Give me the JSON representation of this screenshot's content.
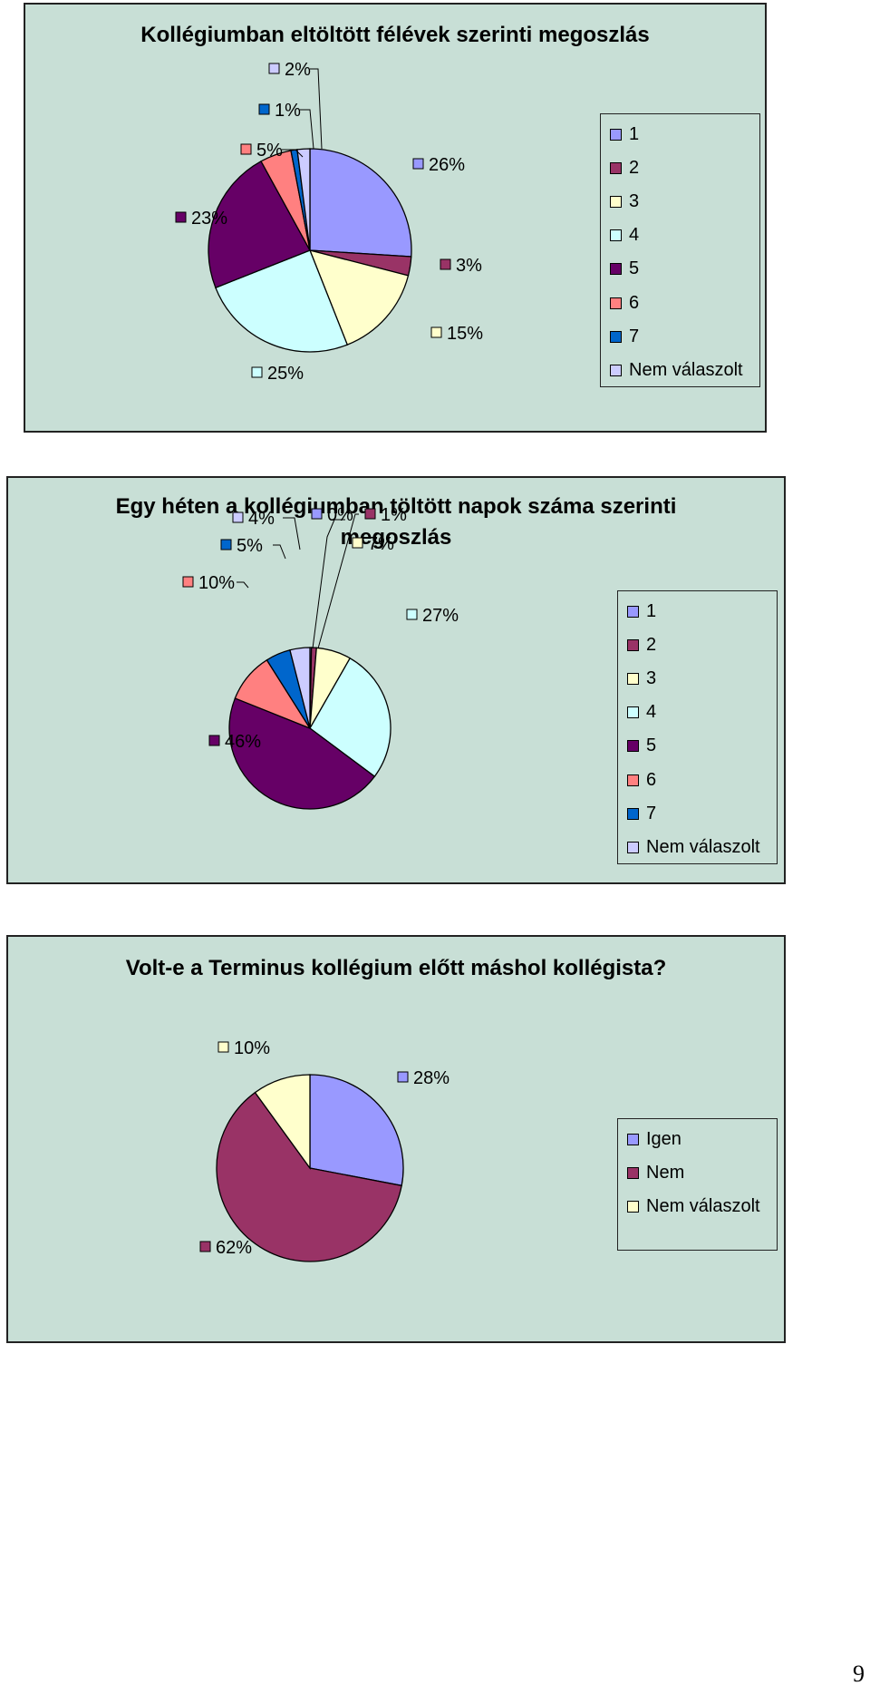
{
  "page_number": "9",
  "chart_data": [
    {
      "type": "pie",
      "title": "Kollégiumban eltöltött félévek szerinti megoszlás",
      "categories": [
        "1",
        "2",
        "3",
        "4",
        "5",
        "6",
        "7",
        "Nem válaszolt"
      ],
      "values": [
        26,
        3,
        15,
        25,
        23,
        5,
        1,
        2
      ],
      "value_labels": [
        "26%",
        "3%",
        "15%",
        "25%",
        "23%",
        "5%",
        "1%",
        "2%"
      ],
      "colors": [
        "#9999ff",
        "#993366",
        "#ffffcc",
        "#ccffff",
        "#660066",
        "#ff8080",
        "#0066cc",
        "#ccccff"
      ],
      "legend_position": "right"
    },
    {
      "type": "pie",
      "title": "Egy héten a kollégiumban töltött napok száma szerinti megoszlás",
      "categories": [
        "1",
        "2",
        "3",
        "4",
        "5",
        "6",
        "7",
        "Nem válaszolt"
      ],
      "values": [
        0.3,
        1,
        7,
        27,
        46,
        10,
        5,
        4
      ],
      "value_labels": [
        "0%",
        "1%",
        "7%",
        "27%",
        "46%",
        "10%",
        "5%",
        "4%"
      ],
      "colors": [
        "#9999ff",
        "#993366",
        "#ffffcc",
        "#ccffff",
        "#660066",
        "#ff8080",
        "#0066cc",
        "#ccccff"
      ],
      "legend_position": "right"
    },
    {
      "type": "pie",
      "title": "Volt-e a Terminus kollégium előtt máshol kollégista?",
      "categories": [
        "Igen",
        "Nem",
        "Nem válaszolt"
      ],
      "values": [
        28,
        62,
        10
      ],
      "value_labels": [
        "28%",
        "62%",
        "10%"
      ],
      "colors": [
        "#9999ff",
        "#993366",
        "#ffffcc"
      ],
      "legend_position": "right"
    }
  ]
}
